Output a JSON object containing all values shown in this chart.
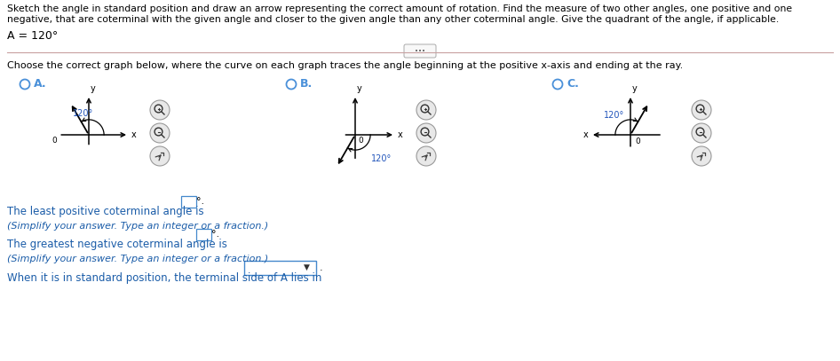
{
  "title_line1": "Sketch the angle in standard position and draw an arrow representing the correct amount of rotation. Find the measure of two other angles, one positive and one",
  "title_line2": "negative, that are coterminal with the given angle and closer to the given angle than any other coterminal angle. Give the quadrant of the angle, if applicable.",
  "angle_label": "A = 120°",
  "instruction_text": "Choose the correct graph below, where the curve on each graph traces the angle beginning at the positive x-axis and ending at the ray.",
  "option_labels": [
    "A.",
    "B.",
    "C."
  ],
  "bottom_text_1": "The least positive coterminal angle is",
  "bottom_text_2": "(Simplify your answer. Type an integer or a fraction.)",
  "bottom_text_3": "The greatest negative coterminal angle is",
  "bottom_text_4": "(Simplify your answer. Type an integer or a fraction.)",
  "bottom_text_5": "When it is in standard position, the terminal side of A lies in",
  "text_color_black": "#000000",
  "text_color_blue": "#1a5ca8",
  "text_color_navy": "#2255aa",
  "bg_color": "#ffffff",
  "radio_color": "#4a90d9",
  "angle_color_blue": "#2255bb",
  "axis_color": "#000000",
  "arrow_color": "#000000",
  "divider_color": "#b0b0b0",
  "icon_bg": "#e8e8e8",
  "icon_edge": "#999999"
}
